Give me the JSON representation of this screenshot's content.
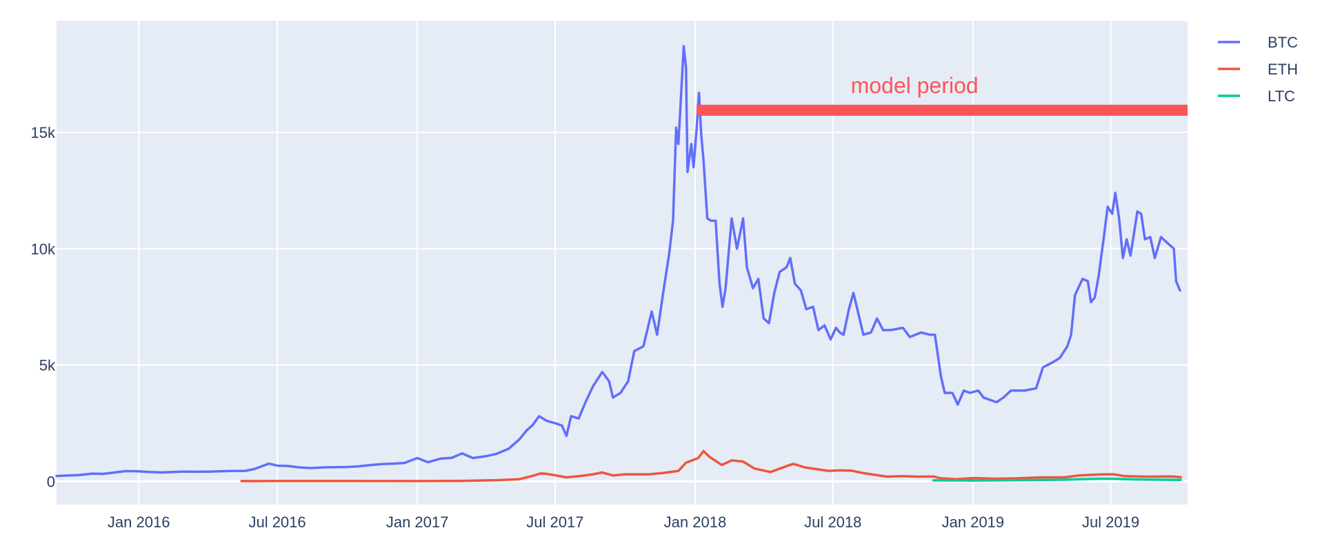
{
  "chart_data": {
    "type": "line",
    "title": "",
    "xlabel": "",
    "ylabel": "",
    "x_range": [
      "2015-09-15",
      "2019-10-10"
    ],
    "ylim": [
      -1000,
      19800
    ],
    "x_ticks": [
      {
        "date": "2016-01-01",
        "label": "Jan 2016"
      },
      {
        "date": "2016-07-01",
        "label": "Jul 2016"
      },
      {
        "date": "2017-01-01",
        "label": "Jan 2017"
      },
      {
        "date": "2017-07-01",
        "label": "Jul 2017"
      },
      {
        "date": "2018-01-01",
        "label": "Jan 2018"
      },
      {
        "date": "2018-07-01",
        "label": "Jul 2018"
      },
      {
        "date": "2019-01-01",
        "label": "Jan 2019"
      },
      {
        "date": "2019-07-01",
        "label": "Jul 2019"
      }
    ],
    "y_ticks": [
      {
        "value": 0,
        "label": "0"
      },
      {
        "value": 5000,
        "label": "5k"
      },
      {
        "value": 10000,
        "label": "10k"
      },
      {
        "value": 15000,
        "label": "15k"
      }
    ],
    "grid": true,
    "legend_position": "top-right",
    "plot_background": "#e5ecf6",
    "series": [
      {
        "name": "BTC",
        "color": "#636efa",
        "points": [
          [
            "2015-09-15",
            230
          ],
          [
            "2015-10-01",
            250
          ],
          [
            "2015-10-15",
            270
          ],
          [
            "2015-11-01",
            330
          ],
          [
            "2015-11-15",
            320
          ],
          [
            "2015-12-01",
            380
          ],
          [
            "2015-12-15",
            440
          ],
          [
            "2016-01-01",
            430
          ],
          [
            "2016-01-15",
            400
          ],
          [
            "2016-02-01",
            380
          ],
          [
            "2016-02-15",
            400
          ],
          [
            "2016-03-01",
            420
          ],
          [
            "2016-03-15",
            410
          ],
          [
            "2016-04-01",
            415
          ],
          [
            "2016-04-15",
            430
          ],
          [
            "2016-05-01",
            445
          ],
          [
            "2016-05-20",
            450
          ],
          [
            "2016-06-01",
            530
          ],
          [
            "2016-06-15",
            700
          ],
          [
            "2016-06-20",
            760
          ],
          [
            "2016-07-01",
            670
          ],
          [
            "2016-07-15",
            660
          ],
          [
            "2016-08-01",
            590
          ],
          [
            "2016-08-15",
            570
          ],
          [
            "2016-09-01",
            600
          ],
          [
            "2016-09-15",
            610
          ],
          [
            "2016-10-01",
            615
          ],
          [
            "2016-10-15",
            640
          ],
          [
            "2016-11-01",
            700
          ],
          [
            "2016-11-15",
            740
          ],
          [
            "2016-12-01",
            760
          ],
          [
            "2016-12-15",
            790
          ],
          [
            "2017-01-01",
            1000
          ],
          [
            "2017-01-15",
            820
          ],
          [
            "2017-02-01",
            980
          ],
          [
            "2017-02-15",
            1010
          ],
          [
            "2017-03-01",
            1200
          ],
          [
            "2017-03-15",
            1000
          ],
          [
            "2017-04-01",
            1080
          ],
          [
            "2017-04-15",
            1180
          ],
          [
            "2017-05-01",
            1400
          ],
          [
            "2017-05-15",
            1800
          ],
          [
            "2017-05-25",
            2200
          ],
          [
            "2017-06-01",
            2400
          ],
          [
            "2017-06-10",
            2800
          ],
          [
            "2017-06-20",
            2600
          ],
          [
            "2017-07-01",
            2500
          ],
          [
            "2017-07-10",
            2400
          ],
          [
            "2017-07-16",
            1950
          ],
          [
            "2017-07-22",
            2800
          ],
          [
            "2017-08-01",
            2700
          ],
          [
            "2017-08-10",
            3400
          ],
          [
            "2017-08-20",
            4100
          ],
          [
            "2017-09-01",
            4700
          ],
          [
            "2017-09-10",
            4300
          ],
          [
            "2017-09-15",
            3600
          ],
          [
            "2017-09-25",
            3800
          ],
          [
            "2017-10-05",
            4300
          ],
          [
            "2017-10-13",
            5600
          ],
          [
            "2017-10-25",
            5800
          ],
          [
            "2017-11-05",
            7300
          ],
          [
            "2017-11-12",
            6300
          ],
          [
            "2017-11-20",
            8100
          ],
          [
            "2017-11-28",
            9800
          ],
          [
            "2017-12-03",
            11200
          ],
          [
            "2017-12-07",
            15200
          ],
          [
            "2017-12-10",
            14500
          ],
          [
            "2017-12-17",
            18700
          ],
          [
            "2017-12-20",
            17800
          ],
          [
            "2017-12-22",
            13300
          ],
          [
            "2017-12-27",
            14500
          ],
          [
            "2017-12-30",
            13500
          ],
          [
            "2018-01-03",
            15200
          ],
          [
            "2018-01-06",
            16700
          ],
          [
            "2018-01-09",
            14900
          ],
          [
            "2018-01-12",
            13800
          ],
          [
            "2018-01-17",
            11300
          ],
          [
            "2018-01-22",
            11200
          ],
          [
            "2018-01-28",
            11200
          ],
          [
            "2018-02-02",
            8500
          ],
          [
            "2018-02-06",
            7500
          ],
          [
            "2018-02-10",
            8300
          ],
          [
            "2018-02-18",
            11300
          ],
          [
            "2018-02-25",
            10000
          ],
          [
            "2018-03-05",
            11300
          ],
          [
            "2018-03-10",
            9200
          ],
          [
            "2018-03-18",
            8300
          ],
          [
            "2018-03-25",
            8700
          ],
          [
            "2018-04-01",
            7000
          ],
          [
            "2018-04-08",
            6800
          ],
          [
            "2018-04-15",
            8100
          ],
          [
            "2018-04-22",
            9000
          ],
          [
            "2018-05-01",
            9200
          ],
          [
            "2018-05-06",
            9600
          ],
          [
            "2018-05-12",
            8500
          ],
          [
            "2018-05-20",
            8200
          ],
          [
            "2018-05-27",
            7400
          ],
          [
            "2018-06-05",
            7500
          ],
          [
            "2018-06-12",
            6500
          ],
          [
            "2018-06-20",
            6700
          ],
          [
            "2018-06-28",
            6100
          ],
          [
            "2018-07-05",
            6600
          ],
          [
            "2018-07-10",
            6400
          ],
          [
            "2018-07-15",
            6300
          ],
          [
            "2018-07-22",
            7400
          ],
          [
            "2018-07-28",
            8100
          ],
          [
            "2018-08-05",
            7000
          ],
          [
            "2018-08-10",
            6300
          ],
          [
            "2018-08-20",
            6400
          ],
          [
            "2018-08-28",
            7000
          ],
          [
            "2018-09-05",
            6500
          ],
          [
            "2018-09-15",
            6500
          ],
          [
            "2018-10-01",
            6600
          ],
          [
            "2018-10-10",
            6200
          ],
          [
            "2018-10-25",
            6400
          ],
          [
            "2018-11-05",
            6300
          ],
          [
            "2018-11-12",
            6300
          ],
          [
            "2018-11-20",
            4500
          ],
          [
            "2018-11-25",
            3800
          ],
          [
            "2018-12-05",
            3800
          ],
          [
            "2018-12-12",
            3300
          ],
          [
            "2018-12-20",
            3900
          ],
          [
            "2018-12-28",
            3800
          ],
          [
            "2019-01-08",
            3900
          ],
          [
            "2019-01-15",
            3600
          ],
          [
            "2019-02-01",
            3400
          ],
          [
            "2019-02-10",
            3600
          ],
          [
            "2019-02-20",
            3900
          ],
          [
            "2019-03-10",
            3900
          ],
          [
            "2019-03-25",
            4000
          ],
          [
            "2019-04-03",
            4900
          ],
          [
            "2019-04-15",
            5100
          ],
          [
            "2019-04-25",
            5300
          ],
          [
            "2019-05-05",
            5800
          ],
          [
            "2019-05-10",
            6300
          ],
          [
            "2019-05-15",
            8000
          ],
          [
            "2019-05-25",
            8700
          ],
          [
            "2019-06-01",
            8600
          ],
          [
            "2019-06-05",
            7700
          ],
          [
            "2019-06-10",
            7900
          ],
          [
            "2019-06-15",
            8800
          ],
          [
            "2019-06-22",
            10500
          ],
          [
            "2019-06-27",
            11800
          ],
          [
            "2019-07-03",
            11500
          ],
          [
            "2019-07-07",
            12400
          ],
          [
            "2019-07-12",
            11300
          ],
          [
            "2019-07-17",
            9600
          ],
          [
            "2019-07-22",
            10400
          ],
          [
            "2019-07-27",
            9700
          ],
          [
            "2019-08-05",
            11600
          ],
          [
            "2019-08-10",
            11500
          ],
          [
            "2019-08-15",
            10400
          ],
          [
            "2019-08-22",
            10500
          ],
          [
            "2019-08-28",
            9600
          ],
          [
            "2019-09-05",
            10500
          ],
          [
            "2019-09-15",
            10200
          ],
          [
            "2019-09-22",
            10000
          ],
          [
            "2019-09-25",
            8600
          ],
          [
            "2019-09-30",
            8200
          ]
        ]
      },
      {
        "name": "ETH",
        "color": "#ef553b",
        "points": [
          [
            "2016-05-15",
            10
          ],
          [
            "2016-07-01",
            12
          ],
          [
            "2016-10-01",
            13
          ],
          [
            "2017-01-01",
            10
          ],
          [
            "2017-03-01",
            20
          ],
          [
            "2017-04-15",
            50
          ],
          [
            "2017-05-15",
            90
          ],
          [
            "2017-06-01",
            230
          ],
          [
            "2017-06-12",
            340
          ],
          [
            "2017-06-20",
            320
          ],
          [
            "2017-07-01",
            260
          ],
          [
            "2017-07-16",
            170
          ],
          [
            "2017-08-01",
            220
          ],
          [
            "2017-08-20",
            300
          ],
          [
            "2017-09-01",
            380
          ],
          [
            "2017-09-15",
            250
          ],
          [
            "2017-10-01",
            300
          ],
          [
            "2017-10-20",
            300
          ],
          [
            "2017-11-01",
            300
          ],
          [
            "2017-11-20",
            360
          ],
          [
            "2017-12-10",
            450
          ],
          [
            "2017-12-20",
            800
          ],
          [
            "2018-01-05",
            1000
          ],
          [
            "2018-01-12",
            1300
          ],
          [
            "2018-01-20",
            1050
          ],
          [
            "2018-02-05",
            700
          ],
          [
            "2018-02-18",
            900
          ],
          [
            "2018-03-05",
            850
          ],
          [
            "2018-03-20",
            550
          ],
          [
            "2018-04-10",
            400
          ],
          [
            "2018-05-01",
            650
          ],
          [
            "2018-05-10",
            750
          ],
          [
            "2018-05-25",
            600
          ],
          [
            "2018-06-10",
            520
          ],
          [
            "2018-06-25",
            450
          ],
          [
            "2018-07-10",
            470
          ],
          [
            "2018-07-25",
            460
          ],
          [
            "2018-08-10",
            350
          ],
          [
            "2018-08-25",
            280
          ],
          [
            "2018-09-10",
            200
          ],
          [
            "2018-10-01",
            220
          ],
          [
            "2018-10-20",
            200
          ],
          [
            "2018-11-10",
            210
          ],
          [
            "2018-11-20",
            130
          ],
          [
            "2018-12-10",
            90
          ],
          [
            "2019-01-01",
            140
          ],
          [
            "2019-02-01",
            110
          ],
          [
            "2019-03-01",
            130
          ],
          [
            "2019-04-01",
            170
          ],
          [
            "2019-05-01",
            170
          ],
          [
            "2019-05-20",
            250
          ],
          [
            "2019-06-20",
            300
          ],
          [
            "2019-07-05",
            300
          ],
          [
            "2019-07-20",
            220
          ],
          [
            "2019-08-20",
            200
          ],
          [
            "2019-09-20",
            210
          ],
          [
            "2019-10-01",
            180
          ]
        ]
      },
      {
        "name": "LTC",
        "color": "#00cc96",
        "points": [
          [
            "2018-11-10",
            40
          ],
          [
            "2019-01-01",
            35
          ],
          [
            "2019-03-01",
            50
          ],
          [
            "2019-05-01",
            70
          ],
          [
            "2019-06-15",
            110
          ],
          [
            "2019-07-01",
            110
          ],
          [
            "2019-08-01",
            80
          ],
          [
            "2019-09-01",
            70
          ],
          [
            "2019-10-01",
            60
          ]
        ]
      }
    ],
    "annotations": [
      {
        "type": "period-bar",
        "label": "model period",
        "color": "#fb5558",
        "x_start": "2018-01-03",
        "x_end": "2019-10-10",
        "y": 15950
      }
    ]
  }
}
